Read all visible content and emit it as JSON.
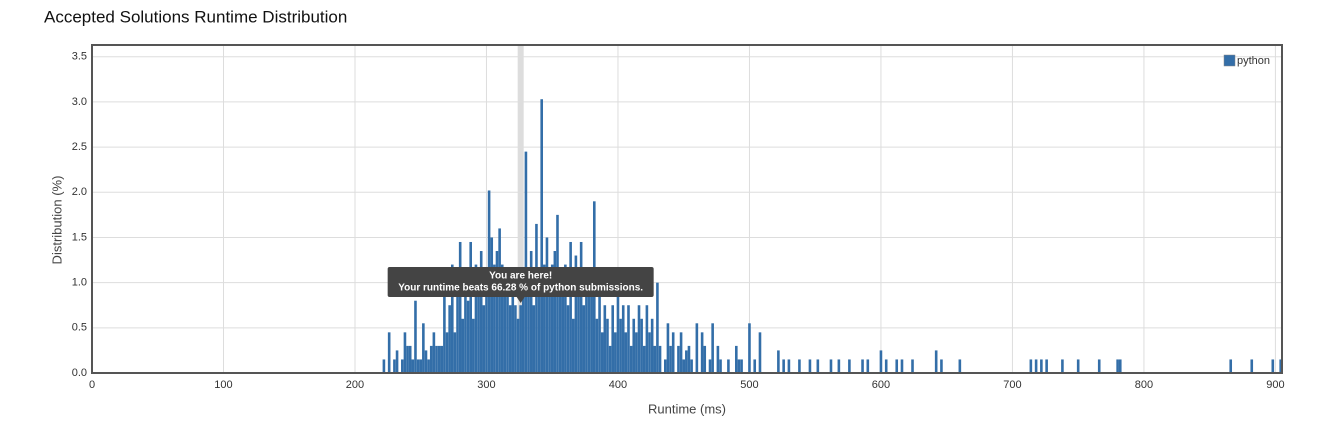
{
  "chart_data": {
    "type": "bar",
    "title": "Accepted Solutions Runtime Distribution",
    "x_label": "Runtime (ms)",
    "y_label": "Distribution (%)",
    "xlim": [
      0,
      905
    ],
    "ylim": [
      0,
      3.63
    ],
    "xticks": [
      0,
      100,
      200,
      300,
      400,
      500,
      600,
      700,
      800,
      900
    ],
    "yticks": [
      {
        "value": 0,
        "label": "0.0"
      },
      0.5,
      {
        "value": 1,
        "label": "1.0"
      },
      1.5,
      {
        "value": 2,
        "label": "2.0"
      },
      2.5,
      {
        "value": 3,
        "label": "3.0"
      },
      3.5
    ],
    "grid": true,
    "legend": "top-right",
    "highlight_x": 326,
    "annotation_title": "You are here!",
    "annotation_text": "Your runtime beats 66.28 % of python submissions.",
    "series": [
      {
        "name": "python",
        "color": "#336ea8",
        "x": [
          222,
          226,
          230,
          232,
          236,
          238,
          240,
          242,
          244,
          246,
          248,
          250,
          252,
          254,
          256,
          258,
          260,
          262,
          264,
          266,
          268,
          270,
          272,
          274,
          276,
          278,
          280,
          282,
          284,
          286,
          288,
          290,
          292,
          294,
          296,
          298,
          300,
          302,
          304,
          306,
          308,
          310,
          312,
          314,
          316,
          318,
          320,
          322,
          324,
          326,
          328,
          330,
          332,
          334,
          336,
          338,
          340,
          342,
          344,
          346,
          348,
          350,
          352,
          354,
          356,
          358,
          360,
          362,
          364,
          366,
          368,
          370,
          372,
          374,
          376,
          378,
          380,
          382,
          384,
          386,
          388,
          390,
          392,
          394,
          396,
          398,
          400,
          402,
          404,
          406,
          408,
          410,
          412,
          414,
          416,
          418,
          420,
          422,
          424,
          426,
          428,
          430,
          432,
          436,
          438,
          440,
          442,
          446,
          448,
          450,
          452,
          454,
          456,
          460,
          464,
          466,
          470,
          472,
          476,
          478,
          484,
          490,
          492,
          494,
          500,
          504,
          508,
          522,
          526,
          530,
          538,
          546,
          552,
          562,
          568,
          576,
          586,
          590,
          600,
          604,
          612,
          616,
          624,
          642,
          646,
          660,
          714,
          718,
          722,
          726,
          738,
          750,
          766,
          780,
          782,
          866,
          882,
          898,
          904
        ],
        "values": [
          0.15,
          0.45,
          0.15,
          0.25,
          0.15,
          0.45,
          0.3,
          0.3,
          0.15,
          0.8,
          0.15,
          0.15,
          0.55,
          0.25,
          0.15,
          0.3,
          0.45,
          0.3,
          0.3,
          0.3,
          1.0,
          0.45,
          0.75,
          1.2,
          0.45,
          0.9,
          1.45,
          0.6,
          1.05,
          0.8,
          1.45,
          0.6,
          1.2,
          0.9,
          1.35,
          0.75,
          1.05,
          2.02,
          1.5,
          1.2,
          1.35,
          1.6,
          1.2,
          0.9,
          1.05,
          0.75,
          0.9,
          0.75,
          0.6,
          0.75,
          1.05,
          2.45,
          0.9,
          1.35,
          0.75,
          1.65,
          1.05,
          3.03,
          1.2,
          1.5,
          0.9,
          1.2,
          1.35,
          1.75,
          1.05,
          0.9,
          1.2,
          0.75,
          1.45,
          0.6,
          1.3,
          0.9,
          1.45,
          0.75,
          1.05,
          0.9,
          1.15,
          1.9,
          0.6,
          0.9,
          0.45,
          0.75,
          0.6,
          0.3,
          0.75,
          0.45,
          0.9,
          0.6,
          0.75,
          0.45,
          0.75,
          0.3,
          0.6,
          0.45,
          0.75,
          0.6,
          0.3,
          0.75,
          0.45,
          0.6,
          0.3,
          1.0,
          0.3,
          0.15,
          0.55,
          0.3,
          0.45,
          0.3,
          0.45,
          0.15,
          0.25,
          0.3,
          0.15,
          0.55,
          0.45,
          0.3,
          0.15,
          0.55,
          0.3,
          0.15,
          0.15,
          0.3,
          0.15,
          0.15,
          0.55,
          0.15,
          0.45,
          0.25,
          0.15,
          0.15,
          0.15,
          0.15,
          0.15,
          0.15,
          0.15,
          0.15,
          0.15,
          0.15,
          0.25,
          0.15,
          0.15,
          0.15,
          0.15,
          0.25,
          0.15,
          0.15,
          0.15,
          0.15,
          0.15,
          0.15,
          0.15,
          0.15,
          0.15,
          0.15,
          0.15,
          0.15,
          0.15,
          0.15,
          0.15
        ]
      }
    ]
  }
}
